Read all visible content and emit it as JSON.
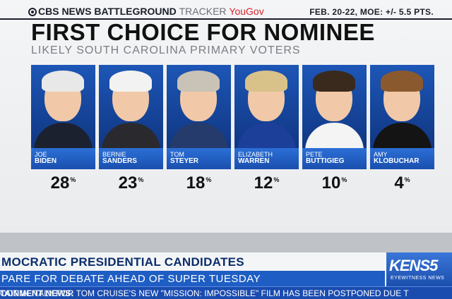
{
  "header": {
    "brand_network": "CBS NEWS BATTLEGROUND",
    "brand_tracker": "TRACKER",
    "brand_partner": "YouGov",
    "meta": "FEB. 20-22, MOE: +/- 5.5 PTS."
  },
  "chart_data": {
    "type": "table",
    "title": "FIRST CHOICE FOR NOMINEE",
    "subtitle": "LIKELY SOUTH CAROLINA PRIMARY VOTERS",
    "unit": "%",
    "candidates": [
      {
        "first": "JOE",
        "last": "BIDEN",
        "value": 28,
        "hair": "#e8e8e8",
        "suit": "#1c2130"
      },
      {
        "first": "BERNIE",
        "last": "SANDERS",
        "value": 23,
        "hair": "#f2f2f2",
        "suit": "#2a2a2e"
      },
      {
        "first": "TOM",
        "last": "STEYER",
        "value": 18,
        "hair": "#c9c2b6",
        "suit": "#243b6b"
      },
      {
        "first": "ELIZABETH",
        "last": "WARREN",
        "value": 12,
        "hair": "#d9c28a",
        "suit": "#1c3f9a"
      },
      {
        "first": "PETE",
        "last": "BUTTIGIEG",
        "value": 10,
        "hair": "#3a2a1e",
        "suit": "#f4f4f4"
      },
      {
        "first": "AMY",
        "last": "KLOBUCHAR",
        "value": 4,
        "hair": "#8a5a2e",
        "suit": "#141414"
      }
    ]
  },
  "lower_third": {
    "line1": "MOCRATIC PRESIDENTIAL CANDIDATES",
    "line2": "PARE FOR DEBATE AHEAD OF SUPER TUESDAY"
  },
  "ticker": {
    "label": "TAINMENT NEWS:",
    "text": " OOT IN ITALY FOR TOM CRUISE'S NEW \"MISSION: IMPOSSIBLE\" FILM HAS BEEN POSTPONED DUE T"
  },
  "station": {
    "logo": "KENS5",
    "tagline": "EYEWITNESS NEWS"
  }
}
